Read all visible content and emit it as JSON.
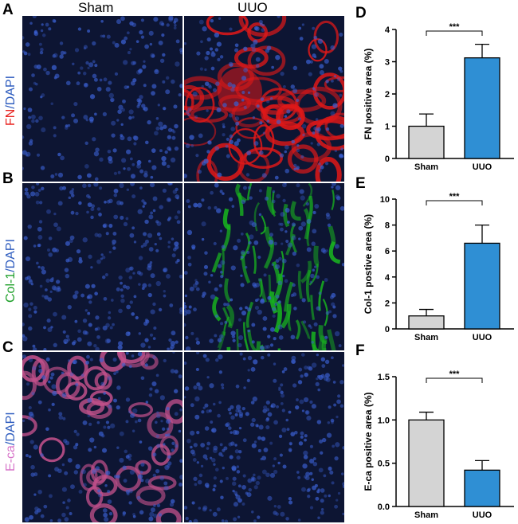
{
  "panels": {
    "A": "A",
    "B": "B",
    "C": "C",
    "D": "D",
    "E": "E",
    "F": "F"
  },
  "columns": {
    "left": "Sham",
    "right": "UUO"
  },
  "rows": [
    {
      "stain": "FN",
      "sep": "/",
      "counter": "DAPI",
      "stain_color": "#e8231f",
      "counter_color": "#2f5dbf"
    },
    {
      "stain": "Col-1",
      "sep": "/",
      "counter": "DAPI",
      "stain_color": "#1fa02a",
      "counter_color": "#2f5dbf"
    },
    {
      "stain": "E-ca",
      "sep": "/",
      "counter": "DAPI",
      "stain_color": "#d774c9",
      "counter_color": "#2f5dbf"
    }
  ],
  "colors": {
    "sham_bar": "#d4d4d4",
    "uuo_bar": "#2f8fd4",
    "dapi": "#1e2f7a",
    "fn": "#e01818",
    "col1": "#18b020",
    "eca": "#c0508a"
  },
  "chart_data": [
    {
      "type": "bar",
      "panel": "D",
      "categories": [
        "Sham",
        "UUO"
      ],
      "values": [
        1.0,
        3.12
      ],
      "errors": [
        0.38,
        0.42
      ],
      "ylabel": "FN positive area (%)",
      "ylim": [
        0,
        4
      ],
      "yticks": [
        "0",
        "1",
        "2",
        "3",
        "4"
      ],
      "significance": "***"
    },
    {
      "type": "bar",
      "panel": "E",
      "categories": [
        "Sham",
        "UUO"
      ],
      "values": [
        1.0,
        6.6
      ],
      "errors": [
        0.5,
        1.4
      ],
      "ylabel": "Col-1 postive area (%)",
      "ylim": [
        0,
        10
      ],
      "yticks": [
        "0",
        "2",
        "4",
        "6",
        "8",
        "10"
      ],
      "significance": "***"
    },
    {
      "type": "bar",
      "panel": "F",
      "categories": [
        "Sham",
        "UUO"
      ],
      "values": [
        1.0,
        0.42
      ],
      "errors": [
        0.09,
        0.11
      ],
      "ylabel": "E-ca positive area (%)",
      "ylim": [
        0,
        1.5
      ],
      "yticks": [
        "0.0",
        "0.5",
        "1.0",
        "1.5"
      ],
      "significance": "***"
    }
  ]
}
